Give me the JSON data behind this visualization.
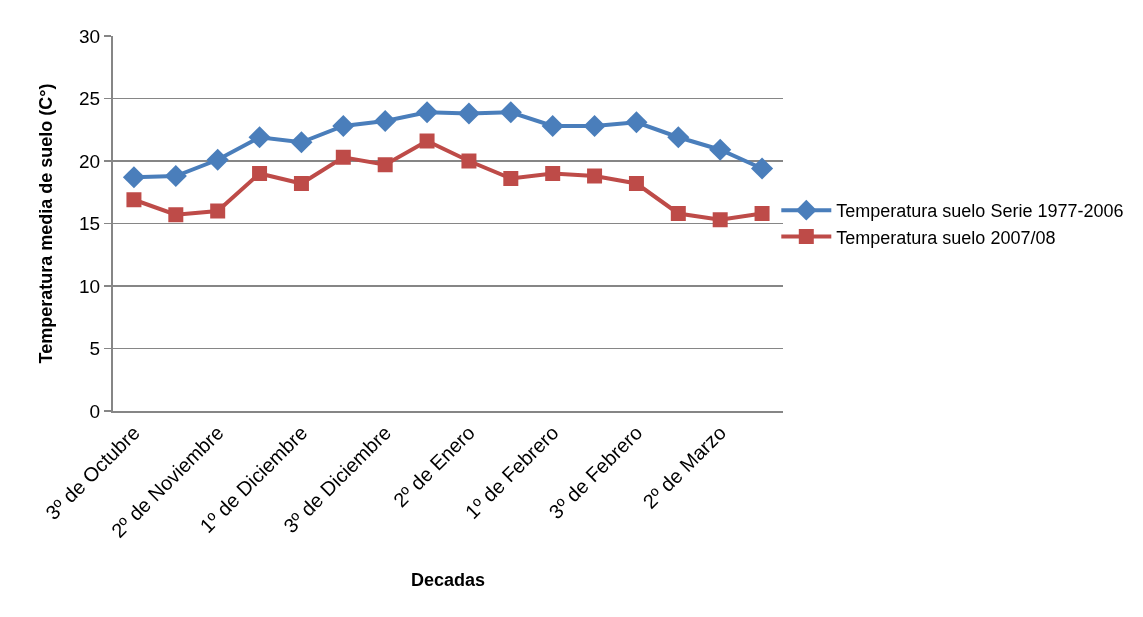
{
  "chart_data": {
    "type": "line",
    "xlabel": "Decadas",
    "ylabel": "Temperatura media de suelo (C°)",
    "categories": [
      "3º de Octubre",
      null,
      "2º de Noviembre",
      null,
      "1º de Diciembre",
      null,
      "3º de Diciembre",
      null,
      "2º de Enero",
      null,
      "1º de Febrero",
      null,
      "3º de Febrero",
      null,
      "2º de Marzo",
      null
    ],
    "series": [
      {
        "name": "Temperatura suelo Serie 1977-2006",
        "color": "#4a7ebb",
        "marker": "diamond",
        "values": [
          18.7,
          18.8,
          20.1,
          21.9,
          21.5,
          22.8,
          23.2,
          23.9,
          23.8,
          23.9,
          22.8,
          22.8,
          23.1,
          21.9,
          20.9,
          19.4
        ]
      },
      {
        "name": "Temperatura suelo 2007/08",
        "color": "#be4b48",
        "marker": "square",
        "values": [
          16.9,
          15.7,
          16.0,
          19.0,
          18.2,
          20.3,
          19.7,
          21.6,
          20.0,
          18.6,
          19.0,
          18.8,
          18.2,
          15.8,
          15.3,
          15.8
        ]
      }
    ],
    "ylim": [
      0,
      30
    ],
    "yticks": [
      0,
      5,
      10,
      15,
      20,
      25,
      30
    ],
    "grid": "y",
    "legend": "right"
  }
}
